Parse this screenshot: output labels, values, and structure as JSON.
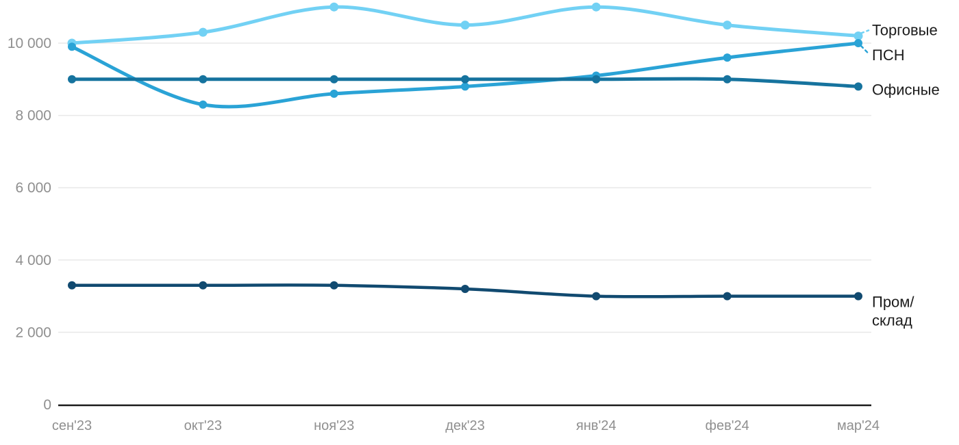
{
  "chart_data": {
    "type": "line",
    "title": "",
    "xlabel": "",
    "ylabel": "",
    "categories": [
      "сен'23",
      "окт'23",
      "ноя'23",
      "дек'23",
      "янв'24",
      "фев'24",
      "мар'24"
    ],
    "series": [
      {
        "name": "Торговые",
        "color": "#72d1f4",
        "values": [
          10000,
          10300,
          11000,
          10500,
          11000,
          10500,
          10200
        ],
        "line_width": 5,
        "dot_radius": 6.5,
        "label_lines": [
          "Торговые"
        ],
        "label_dy": -9,
        "callout": true,
        "callout_dir": "up"
      },
      {
        "name": "ПСН",
        "color": "#2aa3d6",
        "values": [
          9900,
          8300,
          8600,
          8800,
          9100,
          9600,
          10000
        ],
        "line_width": 5,
        "dot_radius": 6,
        "label_lines": [
          "ПСН"
        ],
        "label_dy": 17,
        "callout": true,
        "callout_dir": "down"
      },
      {
        "name": "Офисные",
        "color": "#16739e",
        "values": [
          9000,
          9000,
          9000,
          9000,
          9000,
          9000,
          8800
        ],
        "line_width": 5,
        "dot_radius": 6,
        "label_lines": [
          "Офисные"
        ],
        "label_dy": 4,
        "callout": false,
        "callout_dir": ""
      },
      {
        "name": "Пром/склад",
        "color": "#114a70",
        "values": [
          3300,
          3300,
          3300,
          3200,
          3000,
          3000,
          3000
        ],
        "line_width": 4.5,
        "dot_radius": 6,
        "label_lines": [
          "Пром/",
          "склад"
        ],
        "label_dy": 8,
        "callout": false,
        "callout_dir": ""
      }
    ],
    "yticks": [
      {
        "value": 0,
        "label": "0"
      },
      {
        "value": 2000,
        "label": "2 000"
      },
      {
        "value": 4000,
        "label": "4 000"
      },
      {
        "value": 6000,
        "label": "6 000"
      },
      {
        "value": 8000,
        "label": "8 000"
      },
      {
        "value": 10000,
        "label": "10 000"
      }
    ],
    "ylim": [
      0,
      11200
    ],
    "grid": true,
    "legend_position": "right-inline-labels",
    "colors": {
      "background": "#ffffff",
      "grid": "#e8e8e8",
      "axis_line": "#1a1a1a",
      "tick_text": "#8f8f8f",
      "series_label_text": "#1c1c1c"
    }
  }
}
